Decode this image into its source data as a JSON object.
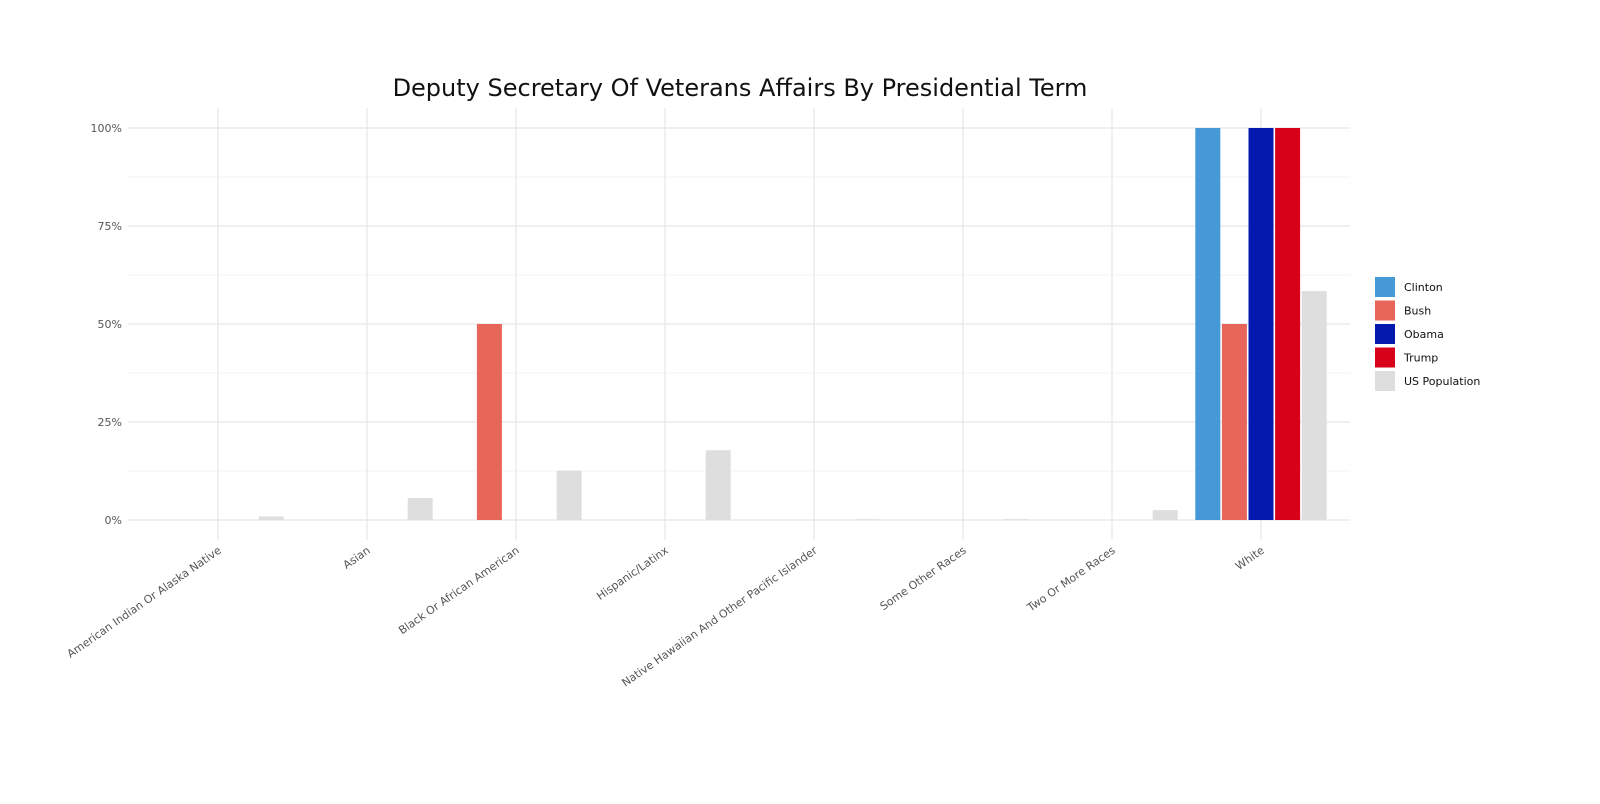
{
  "chart_data": {
    "type": "bar",
    "title": "Deputy Secretary Of Veterans Affairs By Presidential Term",
    "xlabel": "",
    "ylabel": "",
    "ylim": [
      0,
      100
    ],
    "y_ticks": [
      "0%",
      "25%",
      "50%",
      "75%",
      "100%"
    ],
    "y_tick_values": [
      0,
      25,
      50,
      75,
      100
    ],
    "grid": true,
    "legend_position": "right",
    "categories": [
      "American Indian Or Alaska Native",
      "Asian",
      "Black Or African American",
      "Hispanic/Latinx",
      "Native Hawaiian And Other Pacific Islander",
      "Some Other Races",
      "Two Or More Races",
      "White"
    ],
    "series": [
      {
        "name": "Clinton",
        "color": "#4599d6",
        "values": [
          0,
          0,
          0,
          0,
          0,
          0,
          0,
          100
        ]
      },
      {
        "name": "Bush",
        "color": "#e8655a",
        "values": [
          0,
          0,
          50,
          0,
          0,
          0,
          0,
          50
        ]
      },
      {
        "name": "Obama",
        "color": "#0419ae",
        "values": [
          0,
          0,
          0,
          0,
          0,
          0,
          0,
          100
        ]
      },
      {
        "name": "Trump",
        "color": "#d70219",
        "values": [
          0,
          0,
          0,
          0,
          0,
          0,
          0,
          100
        ]
      },
      {
        "name": "US Population",
        "color": "#dedede",
        "values": [
          0.9,
          5.6,
          12.6,
          17.8,
          0.2,
          0.2,
          2.5,
          58.4
        ]
      }
    ]
  }
}
